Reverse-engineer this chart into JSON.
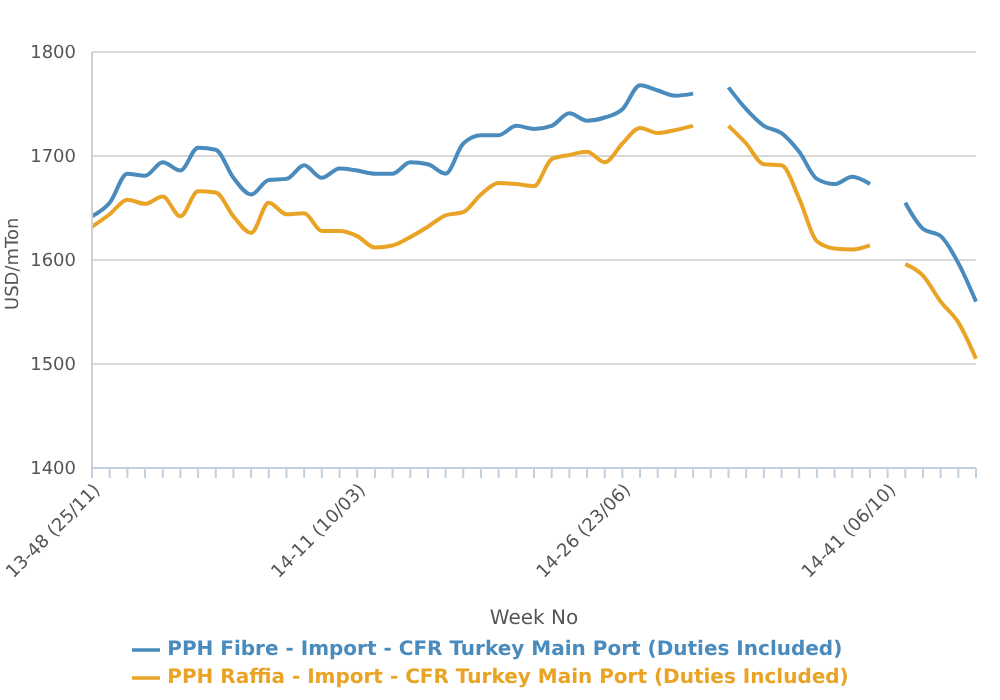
{
  "chart_data": {
    "type": "line",
    "xlabel": "Week No",
    "ylabel": "USD/mTon",
    "categories": [
      "13-48 (25/11)",
      null,
      null,
      null,
      null,
      null,
      null,
      null,
      null,
      null,
      null,
      null,
      null,
      null,
      null,
      "14-11 (10/03)",
      null,
      null,
      null,
      null,
      null,
      null,
      null,
      null,
      null,
      null,
      null,
      null,
      null,
      null,
      "14-26 (23/06)",
      null,
      null,
      null,
      null,
      null,
      null,
      null,
      null,
      null,
      null,
      null,
      null,
      null,
      null,
      "14-41 (06/10)",
      null,
      null,
      null,
      null,
      null
    ],
    "series": [
      {
        "name": "PPH Fibre - Import - CFR Turkey Main Port (Duties Included)",
        "color": "#4a8bbd",
        "values": [
          1642,
          1655,
          1683,
          1681,
          1694,
          1686,
          1708,
          1706,
          1679,
          1663,
          1677,
          1678,
          1691,
          1679,
          1688,
          1686,
          1683,
          1683,
          1694,
          1692,
          1683,
          1712,
          1720,
          1720,
          1729,
          1726,
          1729,
          1741,
          1734,
          1737,
          1745,
          1768,
          1763,
          1758,
          1760,
          null,
          1766,
          1745,
          1729,
          1722,
          1704,
          1678,
          1673,
          1680,
          1673,
          null,
          1655,
          1630,
          1623,
          1597,
          1560
        ]
      },
      {
        "name": "PPH Raffia - Import - CFR Turkey Main Port (Duties Included)",
        "color": "#e9a325",
        "values": [
          1632,
          1644,
          1658,
          1654,
          1661,
          1642,
          1666,
          1665,
          1642,
          1626,
          1655,
          1644,
          1645,
          1628,
          1628,
          1623,
          1612,
          1614,
          1622,
          1632,
          1643,
          1646,
          1663,
          1674,
          1673,
          1671,
          1697,
          1701,
          1704,
          1694,
          1712,
          1727,
          1722,
          1725,
          1729,
          null,
          1729,
          1712,
          1692,
          1691,
          1659,
          1618,
          1611,
          1610,
          1614,
          null,
          1596,
          1585,
          1560,
          1540,
          1505
        ]
      }
    ],
    "ylim": [
      1400,
      1800
    ],
    "yticks": [
      1400,
      1500,
      1600,
      1700,
      1800
    ],
    "grid": "y",
    "legend": "bottom",
    "marker": "none",
    "line_style": "solid"
  }
}
